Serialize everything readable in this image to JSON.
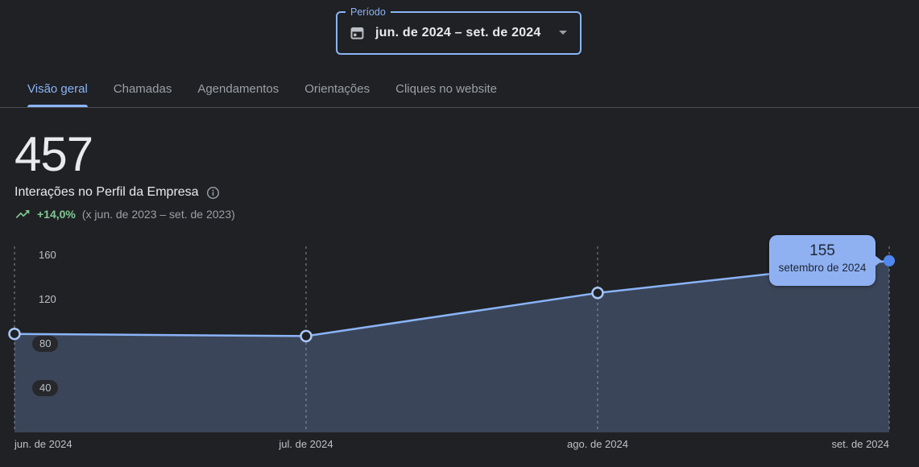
{
  "period": {
    "label": "Período",
    "value": "jun. de 2024 – set. de 2024"
  },
  "tabs": {
    "items": [
      {
        "label": "Visão geral",
        "active": true
      },
      {
        "label": "Chamadas",
        "active": false
      },
      {
        "label": "Agendamentos",
        "active": false
      },
      {
        "label": "Orientações",
        "active": false
      },
      {
        "label": "Cliques no website",
        "active": false
      }
    ]
  },
  "metric": {
    "value": "457",
    "label": "Interações no Perfil da Empresa",
    "trend": "+14,0%",
    "comparison": "(x jun. de 2023 – set. de 2023)"
  },
  "tooltip": {
    "value": "155",
    "date": "setembro de 2024"
  },
  "chart_data": {
    "type": "area",
    "x": [
      "jun. de 2024",
      "jul. de 2024",
      "ago. de 2024",
      "set. de 2024"
    ],
    "values": [
      89,
      87,
      126,
      155
    ],
    "y_ticks": [
      40,
      80,
      120,
      160
    ],
    "ylim": [
      0,
      172
    ],
    "title": "",
    "xlabel": "",
    "ylabel": "",
    "grid": "vertical-dashed",
    "legend": "none",
    "line_color": "#8ab4f8",
    "area_color": "rgba(138,180,248,0.25)",
    "highlighted_point": {
      "x": "set. de 2024",
      "value": 155
    }
  },
  "icons": {
    "calendar": "calendar-icon",
    "dropdown": "dropdown-arrow-icon",
    "info": "info-icon",
    "trend": "trending-up-icon"
  },
  "colors": {
    "background": "#202124",
    "accent_blue": "#8ab4f8",
    "green": "#81c995",
    "gray_text": "#9aa0a6",
    "tooltip_bg": "#8fb1f2",
    "point_solid": "#5188f0"
  }
}
